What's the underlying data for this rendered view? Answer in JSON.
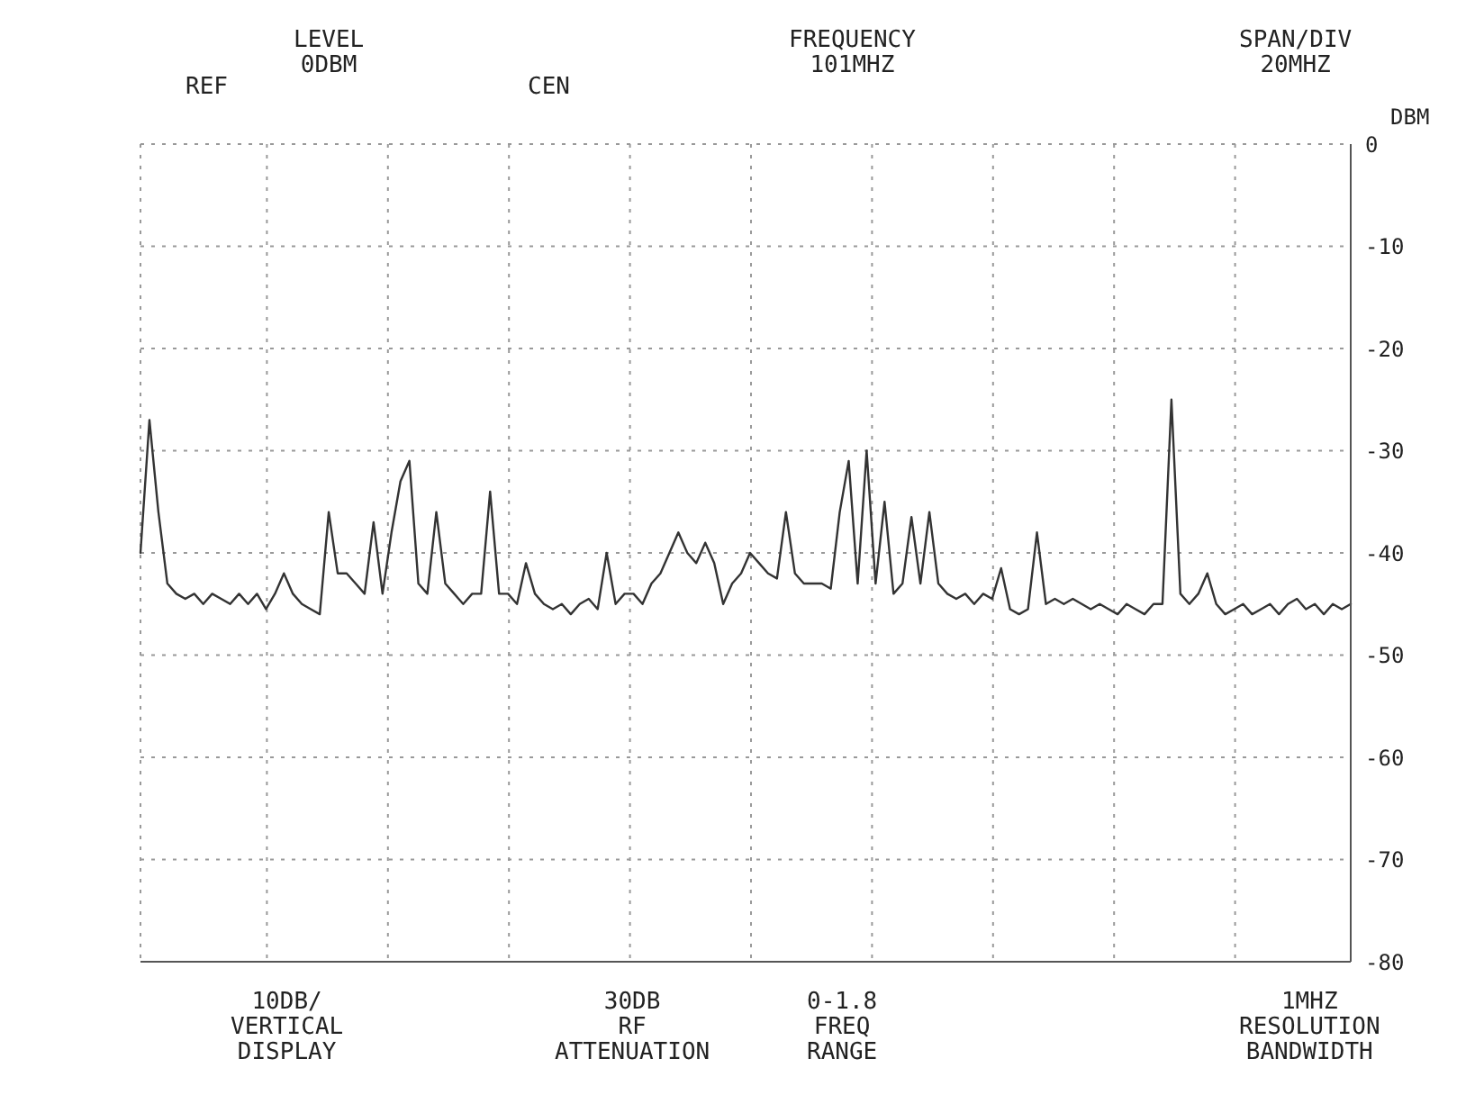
{
  "chart_data": {
    "type": "line",
    "ylabel": "DBM",
    "categories": [
      null,
      null,
      null,
      null,
      null,
      null,
      null,
      null,
      null,
      null,
      null,
      null,
      null,
      null,
      null,
      null,
      null,
      null,
      null,
      null,
      null,
      null,
      null,
      null,
      null,
      null,
      null,
      null,
      null,
      null,
      null,
      null,
      null,
      null,
      null,
      null,
      null,
      null,
      null,
      null,
      null,
      null,
      null,
      null,
      null,
      null,
      null,
      null,
      null,
      null,
      null,
      null,
      null,
      null,
      null,
      null,
      null,
      null,
      null,
      null,
      null,
      null,
      null,
      null,
      null,
      null,
      null,
      null,
      null,
      null,
      null,
      null,
      null,
      null,
      null,
      null,
      null,
      null,
      null,
      null,
      null,
      null,
      null,
      null,
      null,
      null,
      null,
      null,
      null,
      null,
      null,
      null,
      null,
      null,
      null,
      null,
      null,
      null,
      null,
      null,
      null,
      null,
      null,
      null,
      null,
      null,
      null,
      null,
      null,
      null,
      null,
      null,
      null,
      null,
      null,
      null,
      null,
      null,
      null,
      null,
      null,
      null,
      null,
      null,
      null,
      null,
      null,
      null,
      null,
      null,
      null,
      null,
      null,
      null,
      null,
      null
    ],
    "series": [
      {
        "color": "#333333",
        "values": [
          -40,
          -27,
          -36,
          -43,
          -44,
          -44.5,
          -44,
          -45,
          -44,
          -44.5,
          -45,
          -44,
          -45,
          -44,
          -45.5,
          -44,
          -42,
          -44,
          -45,
          -45.5,
          -46,
          -36,
          -42,
          -42,
          -43,
          -44,
          -37,
          -44,
          -38,
          -33,
          -31,
          -43,
          -44,
          -36,
          -43,
          -44,
          -45,
          -44,
          -44,
          -34,
          -44,
          -44,
          -45,
          -41,
          -44,
          -45,
          -45.5,
          -45,
          -46,
          -45,
          -44.5,
          -45.5,
          -40,
          -45,
          -44,
          -44,
          -45,
          -43,
          -42,
          -40,
          -38,
          -40,
          -41,
          -39,
          -41,
          -45,
          -43,
          -42,
          -40,
          -41,
          -42,
          -42.5,
          -36,
          -42,
          -43,
          -43,
          -43,
          -43.5,
          -36,
          -31,
          -43,
          -30,
          -43,
          -35,
          -44,
          -43,
          -36.5,
          -43,
          -36,
          -43,
          -44,
          -44.5,
          -44,
          -45,
          -44,
          -44.5,
          -41.5,
          -45.5,
          -46,
          -45.5,
          -38,
          -45,
          -44.5,
          -45,
          -44.5,
          -45,
          -45.5,
          -45,
          -45.5,
          -46,
          -45,
          -45.5,
          -46,
          -45,
          -45,
          -25,
          -44,
          -45,
          -44,
          -42,
          -45,
          -46,
          -45.5,
          -45,
          -46,
          -45.5,
          -45,
          -46,
          -45,
          -44.5,
          -45.5,
          -45,
          -46,
          -45,
          -45.5,
          -45
        ]
      }
    ],
    "ylim": [
      -80,
      0
    ],
    "yticks": [
      0,
      -10,
      -20,
      -30,
      -40,
      -50,
      -60,
      -70,
      -80
    ],
    "grid": true,
    "tick_labels": "y",
    "marker": "none",
    "line_style": "solid",
    "annotations": [
      "REF",
      "LEVEL\n0DBM",
      "CEN",
      "FREQUENCY\n101MHZ",
      "SPAN/DIV\n20MHZ",
      "10DB/\nVERTICAL\nDISPLAY",
      "30DB\nRF\nATTENUATION",
      "0-1.8\nFREQ\nRANGE",
      "1MHZ\nRESOLUTION\nBANDWIDTH"
    ]
  }
}
